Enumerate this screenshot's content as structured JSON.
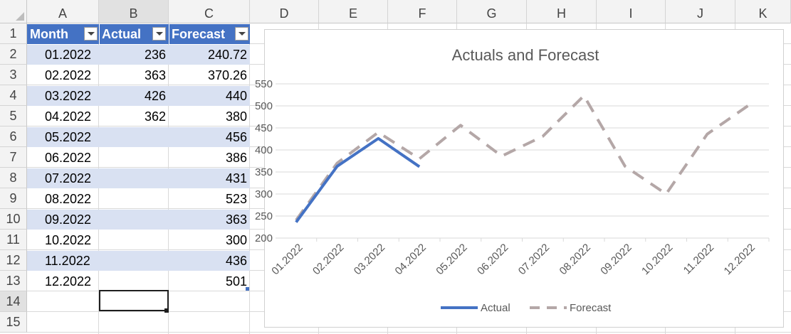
{
  "columns": [
    "A",
    "B",
    "C",
    "D",
    "E",
    "F",
    "G",
    "H",
    "I",
    "J",
    "K"
  ],
  "rows": [
    "1",
    "2",
    "3",
    "4",
    "5",
    "6",
    "7",
    "8",
    "9",
    "10",
    "11",
    "12",
    "13",
    "14",
    "15"
  ],
  "table": {
    "headers": [
      "Month",
      "Actual",
      "Forecast"
    ],
    "rows": [
      {
        "month": "01.2022",
        "actual": "236",
        "forecast": "240.72"
      },
      {
        "month": "02.2022",
        "actual": "363",
        "forecast": "370.26"
      },
      {
        "month": "03.2022",
        "actual": "426",
        "forecast": "440"
      },
      {
        "month": "04.2022",
        "actual": "362",
        "forecast": "380"
      },
      {
        "month": "05.2022",
        "actual": "",
        "forecast": "456"
      },
      {
        "month": "06.2022",
        "actual": "",
        "forecast": "386"
      },
      {
        "month": "07.2022",
        "actual": "",
        "forecast": "431"
      },
      {
        "month": "08.2022",
        "actual": "",
        "forecast": "523"
      },
      {
        "month": "09.2022",
        "actual": "",
        "forecast": "363"
      },
      {
        "month": "10.2022",
        "actual": "",
        "forecast": "300"
      },
      {
        "month": "11.2022",
        "actual": "",
        "forecast": "436"
      },
      {
        "month": "12.2022",
        "actual": "",
        "forecast": "501"
      }
    ]
  },
  "colors": {
    "table_header": "#4472c4",
    "band": "#d9e1f2",
    "actual_line": "#4472c4",
    "forecast_line": "#b4a7a7"
  },
  "chart_data": {
    "type": "line",
    "title": "Actuals and Forecast",
    "categories": [
      "01.2022",
      "02.2022",
      "03.2022",
      "04.2022",
      "05.2022",
      "06.2022",
      "07.2022",
      "08.2022",
      "09.2022",
      "10.2022",
      "11.2022",
      "12.2022"
    ],
    "series": [
      {
        "name": "Actual",
        "values": [
          236,
          363,
          426,
          362,
          null,
          null,
          null,
          null,
          null,
          null,
          null,
          null
        ],
        "style": "solid"
      },
      {
        "name": "Forecast",
        "values": [
          240.72,
          370.26,
          440,
          380,
          456,
          386,
          431,
          523,
          363,
          300,
          436,
          501
        ],
        "style": "dashed"
      }
    ],
    "yticks": [
      "200",
      "250",
      "300",
      "350",
      "400",
      "450",
      "500",
      "550"
    ],
    "ylim": [
      200,
      550
    ],
    "grid": true,
    "legend": "bottom"
  }
}
